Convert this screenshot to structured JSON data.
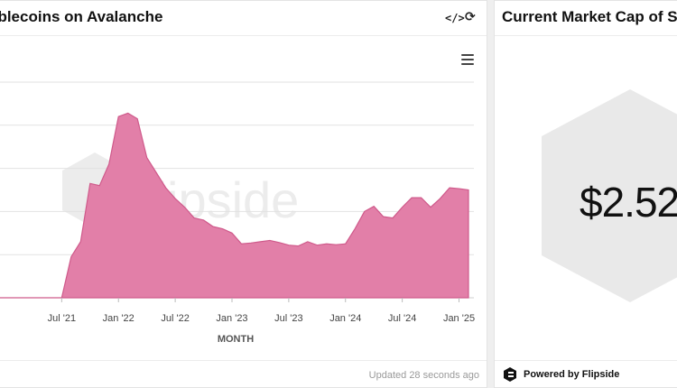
{
  "left_panel": {
    "title": "Stablecoins on Avalanche",
    "updated": "Updated 28 seconds ago",
    "watermark": "flipside"
  },
  "right_panel": {
    "title": "Current Market Cap of Sta",
    "value": "$2.52",
    "powered_by": "Powered by Flipside"
  },
  "colors": {
    "area_fill": "#e27fa8",
    "area_stroke": "#cf5a8b",
    "grid": "#e2e2e2",
    "watermark": "#ececec"
  },
  "chart_data": {
    "type": "area",
    "xlabel": "MONTH",
    "ylabel": "",
    "x_tick_labels": [
      "Jul '21",
      "Jan '22",
      "Jul '22",
      "Jan '23",
      "Jul '23",
      "Jan '24",
      "Jul '24",
      "Jan '25"
    ],
    "grid": true,
    "ylim": [
      0,
      5
    ],
    "series": [
      {
        "x": [
          "2020-12",
          "2021-01",
          "2021-02",
          "2021-03",
          "2021-04",
          "2021-05",
          "2021-06",
          "2021-07",
          "2021-08",
          "2021-09",
          "2021-10",
          "2021-11",
          "2021-12",
          "2022-01",
          "2022-02",
          "2022-03",
          "2022-04",
          "2022-05",
          "2022-06",
          "2022-07",
          "2022-08",
          "2022-09",
          "2022-10",
          "2022-11",
          "2022-12",
          "2023-01",
          "2023-02",
          "2023-03",
          "2023-04",
          "2023-05",
          "2023-06",
          "2023-07",
          "2023-08",
          "2023-09",
          "2023-10",
          "2023-11",
          "2023-12",
          "2024-01",
          "2024-02",
          "2024-03",
          "2024-04",
          "2024-05",
          "2024-06",
          "2024-07",
          "2024-08",
          "2024-09",
          "2024-10",
          "2024-11",
          "2024-12",
          "2025-01",
          "2025-02"
        ],
        "values": [
          0,
          0,
          0,
          0,
          0,
          0,
          0,
          0,
          0.95,
          1.3,
          2.65,
          2.6,
          3.1,
          4.2,
          4.28,
          4.15,
          3.25,
          2.9,
          2.55,
          2.3,
          2.1,
          1.85,
          1.8,
          1.65,
          1.6,
          1.5,
          1.25,
          1.27,
          1.3,
          1.33,
          1.28,
          1.22,
          1.2,
          1.3,
          1.22,
          1.25,
          1.23,
          1.25,
          1.6,
          2.0,
          2.12,
          1.88,
          1.85,
          2.1,
          2.32,
          2.32,
          2.1,
          2.3,
          2.55,
          2.53,
          2.5
        ]
      }
    ]
  }
}
